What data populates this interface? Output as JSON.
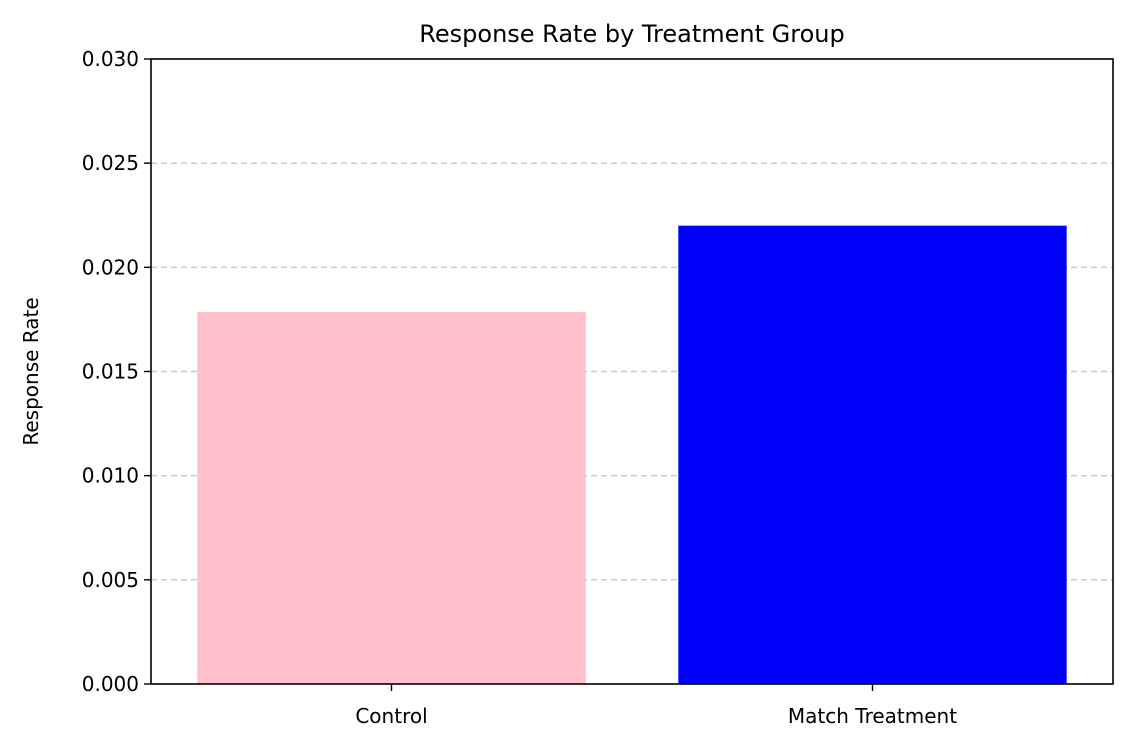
{
  "chart_data": {
    "type": "bar",
    "title": "Response Rate by Treatment Group",
    "xlabel": "",
    "ylabel": "Response Rate",
    "categories": [
      "Control",
      "Match Treatment"
    ],
    "values": [
      0.01786,
      0.022
    ],
    "colors": [
      "#ffc0cb",
      "#0000ff"
    ],
    "ylim": [
      0,
      0.03
    ],
    "yticks": [
      "0.000",
      "0.005",
      "0.010",
      "0.015",
      "0.020",
      "0.025",
      "0.030"
    ],
    "ytick_values": [
      0,
      0.005,
      0.01,
      0.015,
      0.02,
      0.025,
      0.03
    ],
    "grid": "y-dashed",
    "legend": "none"
  }
}
